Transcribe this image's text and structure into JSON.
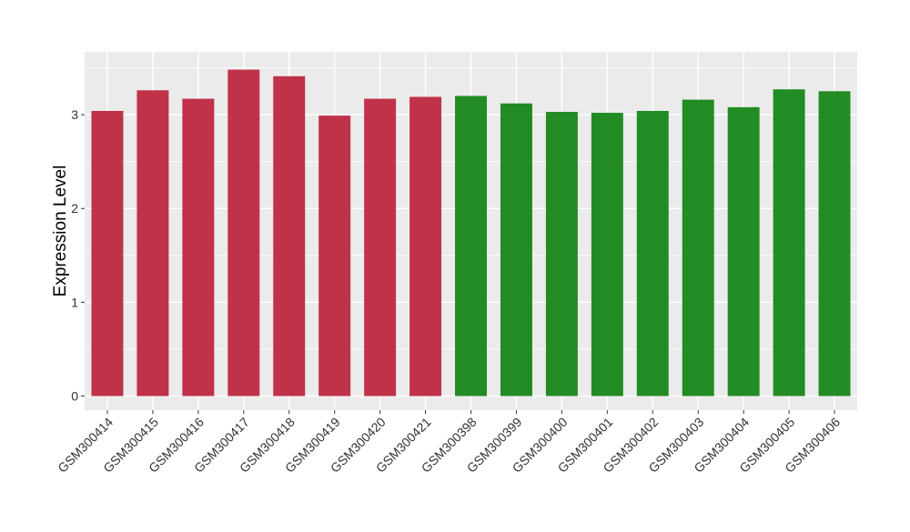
{
  "chart_data": {
    "type": "bar",
    "title": "",
    "xlabel": "",
    "ylabel": "Expression Level",
    "ylim": [
      -0.15,
      3.67
    ],
    "yticks": [
      0,
      1,
      2,
      3
    ],
    "grid": true,
    "legend": "none",
    "categories": [
      "GSM300414",
      "GSM300415",
      "GSM300416",
      "GSM300417",
      "GSM300418",
      "GSM300419",
      "GSM300420",
      "GSM300421",
      "GSM300398",
      "GSM300399",
      "GSM300400",
      "GSM300401",
      "GSM300402",
      "GSM300403",
      "GSM300404",
      "GSM300405",
      "GSM300406"
    ],
    "values": [
      3.04,
      3.26,
      3.17,
      3.48,
      3.41,
      2.99,
      3.17,
      3.19,
      3.2,
      3.12,
      3.03,
      3.02,
      3.04,
      3.16,
      3.08,
      3.27,
      3.25
    ],
    "groups": [
      0,
      0,
      0,
      0,
      0,
      0,
      0,
      0,
      1,
      1,
      1,
      1,
      1,
      1,
      1,
      1,
      1
    ],
    "colors": [
      "#c0314a",
      "#238b23"
    ],
    "panel_background": "#ebebeb",
    "gridline_color": "#ffffff"
  }
}
